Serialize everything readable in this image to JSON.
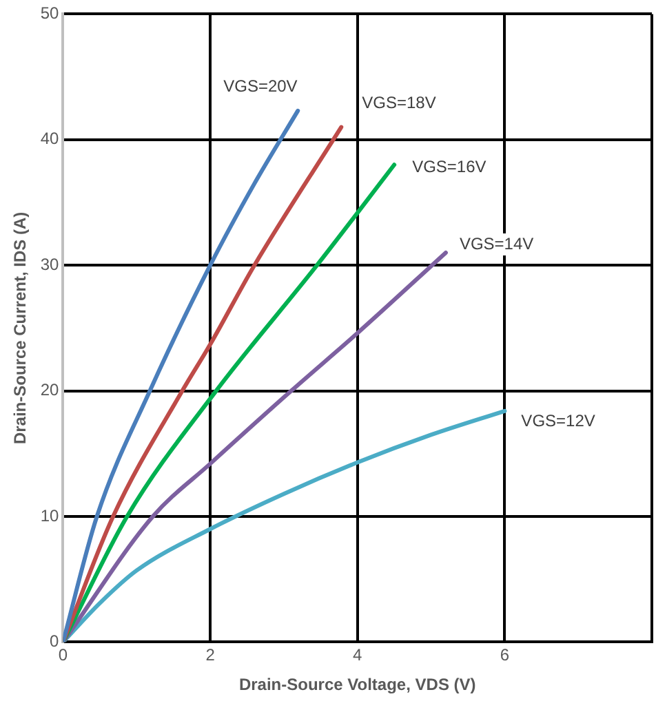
{
  "chart_data": {
    "type": "line",
    "xlabel": "Drain-Source Voltage, VDS (V)",
    "ylabel": "Drain-Source Current, IDS (A)",
    "xlim": [
      0,
      8
    ],
    "xticks": [
      0,
      2,
      4,
      6,
      {
        "value": 8,
        "label": null
      }
    ],
    "ylim": [
      0,
      50
    ],
    "yticks": [
      0,
      10,
      20,
      30,
      40,
      50
    ],
    "grid": true,
    "legend": false,
    "marker": "none",
    "line_style": "solid",
    "series": [
      {
        "name": "VGS=20V",
        "color": "#4a7ebb",
        "x": [
          0,
          0.46,
          1.18,
          2.0,
          2.6,
          3.19
        ],
        "values": [
          0,
          10,
          20,
          30,
          36.5,
          42.3
        ]
      },
      {
        "name": "VGS=18V",
        "color": "#be4b48",
        "x": [
          0,
          0.68,
          1.62,
          2.0,
          2.6,
          3.78
        ],
        "values": [
          0,
          10,
          20,
          23.7,
          30,
          41
        ]
      },
      {
        "name": "VGS=16V",
        "color": "#00b050",
        "x": [
          0,
          0.87,
          2.08,
          3.45,
          4.5
        ],
        "values": [
          0,
          10,
          20,
          30,
          38
        ]
      },
      {
        "name": "VGS=14V",
        "color": "#7d60a0",
        "x": [
          0,
          1.22,
          2.0,
          3.1,
          4.0,
          5.2
        ],
        "values": [
          0,
          10,
          14.2,
          20,
          24.6,
          31
        ]
      },
      {
        "name": "VGS=12V",
        "color": "#4bacc6",
        "x": [
          0,
          0.5,
          1,
          2,
          3,
          4,
          5,
          6
        ],
        "values": [
          0,
          3.1,
          5.7,
          9.0,
          11.8,
          14.3,
          16.5,
          18.4
        ]
      }
    ]
  }
}
